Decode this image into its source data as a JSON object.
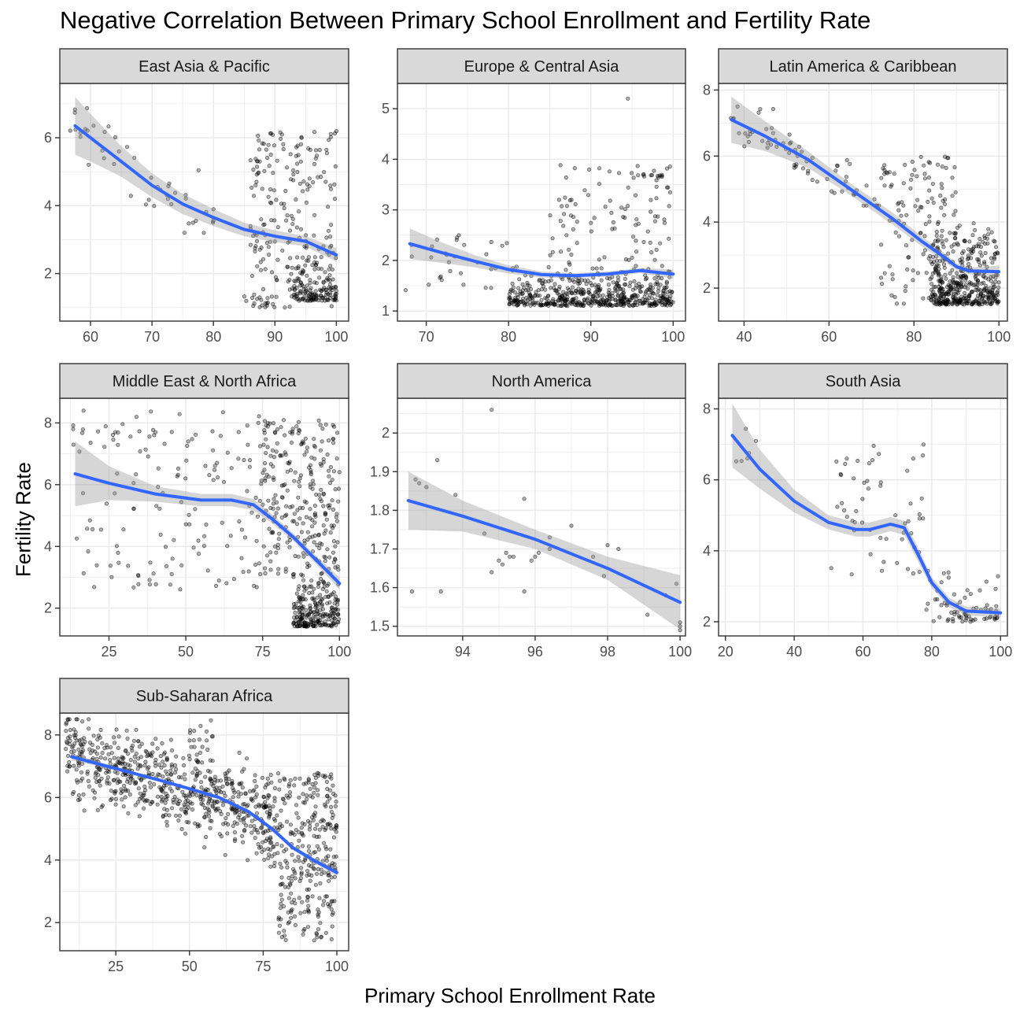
{
  "title": "Negative Correlation Between Primary School Enrollment and Fertility Rate",
  "x_axis_title": "Primary School Enrollment Rate",
  "y_axis_title": "Fertility Rate",
  "colors": {
    "points": "#000000",
    "smooth_line": "#3366FF",
    "ribbon": "#999999",
    "strip_fill": "#D9D9D9",
    "grid": "#EBEBEB",
    "panel_border": "#333333"
  },
  "chart_data": [
    {
      "type": "scatter",
      "facet": "East Asia & Pacific",
      "xlim": [
        55,
        102
      ],
      "ylim": [
        0.6,
        7.6
      ],
      "xticks": [
        60,
        70,
        80,
        90,
        100
      ],
      "yticks": [
        2,
        4,
        6
      ],
      "grid": true,
      "smooth": [
        [
          57.5,
          6.35
        ],
        [
          60,
          6.0
        ],
        [
          65,
          5.3
        ],
        [
          70,
          4.6
        ],
        [
          75,
          4.05
        ],
        [
          80,
          3.65
        ],
        [
          85,
          3.3
        ],
        [
          90,
          3.1
        ],
        [
          95,
          2.95
        ],
        [
          100,
          2.55
        ]
      ],
      "ribbon_halfwidth": [
        0.85,
        0.7,
        0.45,
        0.35,
        0.3,
        0.25,
        0.2,
        0.17,
        0.15,
        0.2
      ],
      "clusters": [
        {
          "x": [
            56,
            80
          ],
          "y": [
            3.2,
            6.4
          ],
          "trend": true,
          "n": 45
        },
        {
          "x": [
            84,
            90
          ],
          "y": [
            0.9,
            1.4
          ],
          "n": 14
        },
        {
          "x": [
            86,
            100
          ],
          "y": [
            1.0,
            6.2
          ],
          "n": 220,
          "bias": 2
        },
        {
          "x": [
            93,
            100
          ],
          "y": [
            1.2,
            2.5
          ],
          "n": 120,
          "bias": 0
        }
      ]
    },
    {
      "type": "scatter",
      "facet": "Europe & Central Asia",
      "xlim": [
        66.5,
        101.5
      ],
      "ylim": [
        0.8,
        5.5
      ],
      "xticks": [
        70,
        80,
        90,
        100
      ],
      "yticks": [
        1,
        2,
        3,
        4,
        5
      ],
      "grid": true,
      "smooth": [
        [
          68,
          2.33
        ],
        [
          72,
          2.15
        ],
        [
          76,
          1.98
        ],
        [
          80,
          1.82
        ],
        [
          84,
          1.72
        ],
        [
          88,
          1.7
        ],
        [
          92,
          1.73
        ],
        [
          96,
          1.8
        ],
        [
          100,
          1.73
        ]
      ],
      "ribbon_halfwidth": [
        0.3,
        0.2,
        0.12,
        0.08,
        0.06,
        0.05,
        0.05,
        0.05,
        0.09
      ],
      "clusters": [
        {
          "x": [
            67,
            80
          ],
          "y": [
            1.4,
            2.5
          ],
          "n": 30
        },
        {
          "x": [
            80,
            100
          ],
          "y": [
            1.1,
            2.0
          ],
          "n": 520,
          "bias": 0
        },
        {
          "x": [
            85,
            100
          ],
          "y": [
            2.0,
            4.0
          ],
          "n": 90
        },
        {
          "x": [
            96,
            99
          ],
          "y": [
            3.6,
            3.7
          ],
          "n": 10
        }
      ],
      "extra_points": [
        [
          94.5,
          5.2
        ]
      ]
    },
    {
      "type": "scatter",
      "facet": "Latin America & Caribbean",
      "xlim": [
        34,
        102
      ],
      "ylim": [
        1.0,
        8.2
      ],
      "xticks": [
        40,
        60,
        80,
        100
      ],
      "yticks": [
        2,
        4,
        6,
        8
      ],
      "grid": true,
      "smooth": [
        [
          37,
          7.1
        ],
        [
          45,
          6.6
        ],
        [
          55,
          5.9
        ],
        [
          65,
          5.0
        ],
        [
          75,
          4.1
        ],
        [
          82,
          3.4
        ],
        [
          87,
          2.95
        ],
        [
          90,
          2.65
        ],
        [
          93,
          2.52
        ],
        [
          100,
          2.5
        ]
      ],
      "ribbon_halfwidth": [
        0.7,
        0.45,
        0.25,
        0.18,
        0.18,
        0.15,
        0.13,
        0.1,
        0.1,
        0.18
      ],
      "clusters": [
        {
          "x": [
            36,
            72
          ],
          "y": [
            4.5,
            7.0
          ],
          "trend": true,
          "n": 70
        },
        {
          "x": [
            72,
            90
          ],
          "y": [
            1.5,
            6.0
          ],
          "n": 130
        },
        {
          "x": [
            84,
            100
          ],
          "y": [
            1.5,
            4.5
          ],
          "n": 420,
          "bias": 0
        }
      ]
    },
    {
      "type": "scatter",
      "facet": "Middle East & North Africa",
      "xlim": [
        9,
        103
      ],
      "ylim": [
        1.1,
        8.8
      ],
      "xticks": [
        25,
        50,
        75,
        100
      ],
      "yticks": [
        2,
        4,
        6,
        8
      ],
      "grid": true,
      "smooth": [
        [
          14,
          6.35
        ],
        [
          25,
          6.05
        ],
        [
          40,
          5.7
        ],
        [
          55,
          5.5
        ],
        [
          65,
          5.5
        ],
        [
          72,
          5.35
        ],
        [
          78,
          4.9
        ],
        [
          85,
          4.3
        ],
        [
          92,
          3.6
        ],
        [
          100,
          2.8
        ]
      ],
      "ribbon_halfwidth": [
        1.05,
        0.55,
        0.25,
        0.2,
        0.2,
        0.18,
        0.15,
        0.12,
        0.13,
        0.2
      ],
      "clusters": [
        {
          "x": [
            13,
            75
          ],
          "y": [
            2.6,
            8.4
          ],
          "n": 150
        },
        {
          "x": [
            75,
            100
          ],
          "y": [
            3.0,
            8.1
          ],
          "n": 260
        },
        {
          "x": [
            85,
            100
          ],
          "y": [
            1.4,
            3.5
          ],
          "n": 230,
          "bias": 0
        }
      ]
    },
    {
      "type": "scatter",
      "facet": "North America",
      "xlim": [
        92.2,
        100.15
      ],
      "ylim": [
        1.475,
        2.09
      ],
      "xticks": [
        94,
        96,
        98,
        100
      ],
      "yticks": [
        1.5,
        1.6,
        1.7,
        1.8,
        1.9,
        2.0
      ],
      "grid": true,
      "smooth": [
        [
          92.5,
          1.825
        ],
        [
          94,
          1.785
        ],
        [
          96,
          1.725
        ],
        [
          98,
          1.65
        ],
        [
          100,
          1.562
        ]
      ],
      "ribbon_halfwidth": [
        0.075,
        0.04,
        0.025,
        0.03,
        0.07
      ],
      "points": [
        [
          92.6,
          1.59
        ],
        [
          92.7,
          1.88
        ],
        [
          92.8,
          1.87
        ],
        [
          93.0,
          1.86
        ],
        [
          93.4,
          1.59
        ],
        [
          93.3,
          1.93
        ],
        [
          93.8,
          1.84
        ],
        [
          94.6,
          1.74
        ],
        [
          94.8,
          1.64
        ],
        [
          94.8,
          2.06
        ],
        [
          95.0,
          1.67
        ],
        [
          95.1,
          1.66
        ],
        [
          95.2,
          1.69
        ],
        [
          95.3,
          1.68
        ],
        [
          95.4,
          1.68
        ],
        [
          95.7,
          1.59
        ],
        [
          95.7,
          1.83
        ],
        [
          95.9,
          1.67
        ],
        [
          96.0,
          1.68
        ],
        [
          96.1,
          1.69
        ],
        [
          96.4,
          1.7
        ],
        [
          96.4,
          1.73
        ],
        [
          97.0,
          1.76
        ],
        [
          97.6,
          1.68
        ],
        [
          97.9,
          1.63
        ],
        [
          98.0,
          1.71
        ],
        [
          98.3,
          1.7
        ],
        [
          99.1,
          1.53
        ],
        [
          99.6,
          1.58
        ],
        [
          99.9,
          1.61
        ],
        [
          100.0,
          1.49
        ],
        [
          100.0,
          1.5
        ],
        [
          100.0,
          1.51
        ]
      ]
    },
    {
      "type": "scatter",
      "facet": "South Asia",
      "xlim": [
        18,
        102
      ],
      "ylim": [
        1.6,
        8.3
      ],
      "xticks": [
        20,
        40,
        60,
        80,
        100
      ],
      "yticks": [
        2,
        4,
        6,
        8
      ],
      "grid": true,
      "smooth": [
        [
          22,
          7.25
        ],
        [
          30,
          6.3
        ],
        [
          40,
          5.4
        ],
        [
          50,
          4.8
        ],
        [
          58,
          4.6
        ],
        [
          62,
          4.6
        ],
        [
          68,
          4.75
        ],
        [
          72,
          4.65
        ],
        [
          76,
          3.9
        ],
        [
          80,
          3.1
        ],
        [
          85,
          2.55
        ],
        [
          90,
          2.3
        ],
        [
          100,
          2.25
        ]
      ],
      "ribbon_halfwidth": [
        0.9,
        0.55,
        0.32,
        0.2,
        0.2,
        0.2,
        0.2,
        0.2,
        0.2,
        0.15,
        0.13,
        0.13,
        0.12
      ],
      "clusters": [
        {
          "x": [
            22,
            30
          ],
          "y": [
            6.4,
            7.6
          ],
          "n": 6
        },
        {
          "x": [
            50,
            78
          ],
          "y": [
            3.3,
            7.0
          ],
          "n": 55
        },
        {
          "x": [
            78,
            100
          ],
          "y": [
            2.0,
            3.6
          ],
          "n": 70,
          "bias": 0
        }
      ]
    },
    {
      "type": "scatter",
      "facet": "Sub-Saharan Africa",
      "xlim": [
        6,
        104
      ],
      "ylim": [
        1.1,
        8.7
      ],
      "xticks": [
        25,
        50,
        75,
        100
      ],
      "yticks": [
        2,
        4,
        6,
        8
      ],
      "grid": true,
      "smooth": [
        [
          10,
          7.3
        ],
        [
          20,
          7.05
        ],
        [
          30,
          6.8
        ],
        [
          40,
          6.55
        ],
        [
          50,
          6.28
        ],
        [
          60,
          6.0
        ],
        [
          70,
          5.55
        ],
        [
          78,
          5.0
        ],
        [
          85,
          4.4
        ],
        [
          92,
          4.0
        ],
        [
          100,
          3.6
        ]
      ],
      "ribbon_halfwidth": [
        0.12,
        0.07,
        0.05,
        0.04,
        0.04,
        0.04,
        0.05,
        0.06,
        0.07,
        0.08,
        0.12
      ],
      "clusters": [
        {
          "x": [
            8,
            78
          ],
          "y": [
            4.0,
            8.0
          ],
          "trend": true,
          "n": 650
        },
        {
          "x": [
            50,
            60
          ],
          "y": [
            7.8,
            8.5
          ],
          "n": 12
        },
        {
          "x": [
            75,
            100
          ],
          "y": [
            3.5,
            6.8
          ],
          "n": 220
        },
        {
          "x": [
            80,
            100
          ],
          "y": [
            1.4,
            4.0
          ],
          "n": 110
        }
      ]
    }
  ]
}
